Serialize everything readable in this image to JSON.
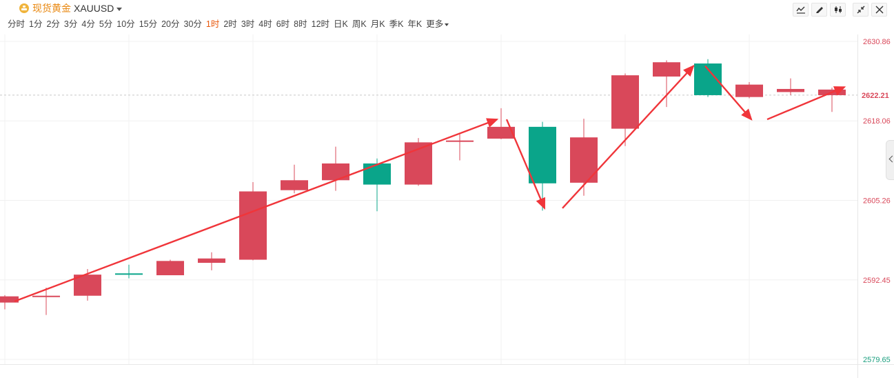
{
  "header": {
    "instrument_name": "现货黄金",
    "symbol": "XAUUSD"
  },
  "intervals": [
    {
      "label": "分时"
    },
    {
      "label": "1分"
    },
    {
      "label": "2分"
    },
    {
      "label": "3分"
    },
    {
      "label": "4分"
    },
    {
      "label": "5分"
    },
    {
      "label": "10分"
    },
    {
      "label": "15分"
    },
    {
      "label": "20分"
    },
    {
      "label": "30分"
    },
    {
      "label": "1时",
      "active": true
    },
    {
      "label": "2时"
    },
    {
      "label": "3时"
    },
    {
      "label": "4时"
    },
    {
      "label": "6时"
    },
    {
      "label": "8时"
    },
    {
      "label": "12时"
    },
    {
      "label": "日K"
    },
    {
      "label": "周K"
    },
    {
      "label": "月K"
    },
    {
      "label": "季K"
    },
    {
      "label": "年K"
    },
    {
      "label": "更多"
    }
  ],
  "toolbar_icons": [
    "line-tool-icon",
    "pen-draw-icon",
    "candle-style-icon",
    "shrink-icon",
    "close-icon"
  ],
  "colors": {
    "up": "#d9485a",
    "down": "#0aa58a",
    "arrow": "#f0353a",
    "current_price": "#d9485a"
  },
  "chart_data": {
    "type": "candlestick",
    "ylim": [
      2579.65,
      2630.86
    ],
    "y_ticks": [
      2579.65,
      2592.45,
      2605.26,
      2618.06,
      2630.86
    ],
    "current_price": 2622.21,
    "candles": [
      {
        "open": 2588.8,
        "close": 2589.8,
        "high": 2590.0,
        "low": 2587.7
      },
      {
        "open": 2589.7,
        "close": 2589.9,
        "high": 2591.2,
        "low": 2586.8
      },
      {
        "open": 2589.9,
        "close": 2593.3,
        "high": 2594.2,
        "low": 2589.1
      },
      {
        "open": 2593.5,
        "close": 2593.3,
        "high": 2594.9,
        "low": 2592.7
      },
      {
        "open": 2593.2,
        "close": 2595.5,
        "high": 2595.7,
        "low": 2593.2
      },
      {
        "open": 2595.2,
        "close": 2595.9,
        "high": 2596.9,
        "low": 2594.0
      },
      {
        "open": 2595.7,
        "close": 2606.7,
        "high": 2608.2,
        "low": 2595.6
      },
      {
        "open": 2606.9,
        "close": 2608.5,
        "high": 2611.0,
        "low": 2606.4
      },
      {
        "open": 2608.5,
        "close": 2611.2,
        "high": 2613.9,
        "low": 2606.8
      },
      {
        "open": 2611.2,
        "close": 2607.8,
        "high": 2612.0,
        "low": 2603.5
      },
      {
        "open": 2607.8,
        "close": 2614.6,
        "high": 2615.3,
        "low": 2607.6
      },
      {
        "open": 2614.9,
        "close": 2614.9,
        "high": 2615.9,
        "low": 2611.7
      },
      {
        "open": 2615.2,
        "close": 2617.1,
        "high": 2620.1,
        "low": 2615.1
      },
      {
        "open": 2617.1,
        "close": 2608.0,
        "high": 2617.9,
        "low": 2603.6
      },
      {
        "open": 2608.1,
        "close": 2615.4,
        "high": 2618.4,
        "low": 2606.0
      },
      {
        "open": 2616.8,
        "close": 2625.4,
        "high": 2625.7,
        "low": 2614.0
      },
      {
        "open": 2625.2,
        "close": 2627.5,
        "high": 2627.8,
        "low": 2620.3
      },
      {
        "open": 2627.3,
        "close": 2622.2,
        "high": 2628.0,
        "low": 2621.9
      },
      {
        "open": 2621.9,
        "close": 2623.9,
        "high": 2624.3,
        "low": 2621.7
      },
      {
        "open": 2622.7,
        "close": 2623.2,
        "high": 2624.9,
        "low": 2622.2
      },
      {
        "open": 2622.2,
        "close": 2623.1,
        "high": 2623.4,
        "low": 2619.5
      }
    ],
    "arrows": [
      {
        "from": [
          0.0,
          2589.0
        ],
        "to": [
          11.9,
          2618.3
        ]
      },
      {
        "from": [
          11.9,
          2618.3
        ],
        "to": [
          13.05,
          2604.0
        ]
      },
      {
        "from": [
          13.25,
          2604.0
        ],
        "to": [
          16.65,
          2626.9
        ]
      },
      {
        "from": [
          16.7,
          2626.9
        ],
        "to": [
          18.05,
          2618.3
        ]
      },
      {
        "from": [
          18.2,
          2618.3
        ],
        "to": [
          20.3,
          2623.5
        ]
      }
    ]
  }
}
